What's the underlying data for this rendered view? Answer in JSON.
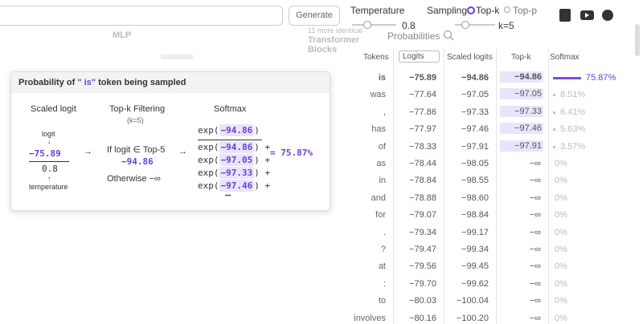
{
  "header": {
    "generate": "Generate",
    "temperature_label": "Temperature",
    "temperature_value": "0.8",
    "sampling_label": "Sampling",
    "topk": "Top-k",
    "topp": "Top-p",
    "k_value": "k=5"
  },
  "background": {
    "mlp": "MLP",
    "identical": "11 more identical",
    "transformer": "Transformer",
    "blocks": "Blocks",
    "probabilities": "Probabilities"
  },
  "table": {
    "headers": [
      "Tokens",
      "Logits",
      "Scaled logits",
      "Top-k",
      "Softmax"
    ],
    "rows": [
      [
        "is",
        "−75.89",
        "−94.86",
        "−94.86",
        "75.87%"
      ],
      [
        "was",
        "−77.64",
        "−97.05",
        "−97.05",
        "8.51%"
      ],
      [
        ",",
        "−77.86",
        "−97.33",
        "−97.33",
        "6.41%"
      ],
      [
        "has",
        "−77.97",
        "−97.46",
        "−97.46",
        "5.63%"
      ],
      [
        "of",
        "−78.33",
        "−97.91",
        "−97.91",
        "3.57%"
      ],
      [
        "as",
        "−78.44",
        "−98.05",
        "−∞",
        "0%"
      ],
      [
        "in",
        "−78.84",
        "−98.55",
        "−∞",
        "0%"
      ],
      [
        "and",
        "−78.88",
        "−98.60",
        "−∞",
        "0%"
      ],
      [
        "for",
        "−79.07",
        "−98.84",
        "−∞",
        "0%"
      ],
      [
        ".",
        "−79.34",
        "−99.17",
        "−∞",
        "0%"
      ],
      [
        "?",
        "−79.47",
        "−99.34",
        "−∞",
        "0%"
      ],
      [
        "at",
        "−79.56",
        "−99.45",
        "−∞",
        "0%"
      ],
      [
        ":",
        "−79.70",
        "−99.62",
        "−∞",
        "0%"
      ],
      [
        "to",
        "−80.03",
        "−100.04",
        "−∞",
        "0%"
      ],
      [
        "involves",
        "−80.16",
        "−100.20",
        "−∞",
        "0%"
      ]
    ]
  },
  "popup": {
    "title_pre": "Probability of",
    "token": "\" is\"",
    "title_post": "token being sampled",
    "scaled": {
      "title": "Scaled logit",
      "logit_label": "logit",
      "logit": "−75.89",
      "temperature": "0.8",
      "temperature_label": "temperature"
    },
    "topk": {
      "title": "Top-k Filtering",
      "k": "(k=5)",
      "condition": "If logit ∈ Top-5",
      "value": "−94.86",
      "otherwise": "Otherwise −∞"
    },
    "softmax": {
      "title": "Softmax",
      "exp_open": "exp(",
      "exp_close": ")",
      "plus": "+",
      "numerator": "−94.86",
      "denominator": [
        "−94.86",
        "−97.05",
        "−97.33",
        "−97.46"
      ],
      "ellipsis": "•••",
      "result": "= 75.87%"
    }
  }
}
